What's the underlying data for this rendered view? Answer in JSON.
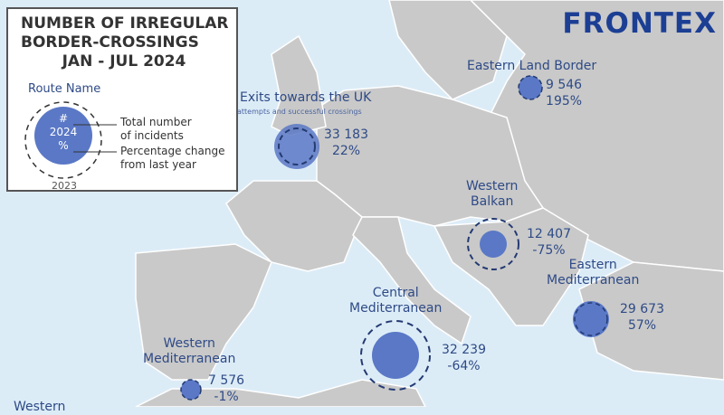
{
  "brand": {
    "logo": "FRONTEX",
    "color": "#1c3f94"
  },
  "legend": {
    "title_lines": [
      "NUMBER OF IRREGULAR",
      "BORDER-CROSSINGS",
      "JAN - JUL 2024"
    ],
    "route_name": "Route Name",
    "symbol": "#",
    "year_2024": "2024",
    "percent": "%",
    "year_2023": "2023",
    "total_label_1": "Total number",
    "total_label_2": "of incidents",
    "pct_label_1": "Percentage change",
    "pct_label_2": "from last year"
  },
  "colors": {
    "sea": "#dcecf7",
    "land": "#c9c9c9",
    "bubble": "#5a78c6",
    "dashed": "#243a72",
    "text": "#2e4a86"
  },
  "routes": [
    {
      "name": "Exits towards the UK",
      "subtitle": "attempts and successful crossings",
      "total": "33 183",
      "change": "22%"
    },
    {
      "name": "Eastern Land Border",
      "total": "9 546",
      "change": "195%"
    },
    {
      "name_1": "Western",
      "name_2": "Balkan",
      "total": "12 407",
      "change": "-75%"
    },
    {
      "name_1": "Eastern",
      "name_2": "Mediterranean",
      "total": "29 673",
      "change": "57%"
    },
    {
      "name_1": "Central",
      "name_2": "Mediterranean",
      "total": "32 239",
      "change": "-64%"
    },
    {
      "name_1": "Western",
      "name_2": "Mediterranean",
      "total": "7 576",
      "change": "-1%"
    },
    {
      "name_1": "Western"
    }
  ]
}
